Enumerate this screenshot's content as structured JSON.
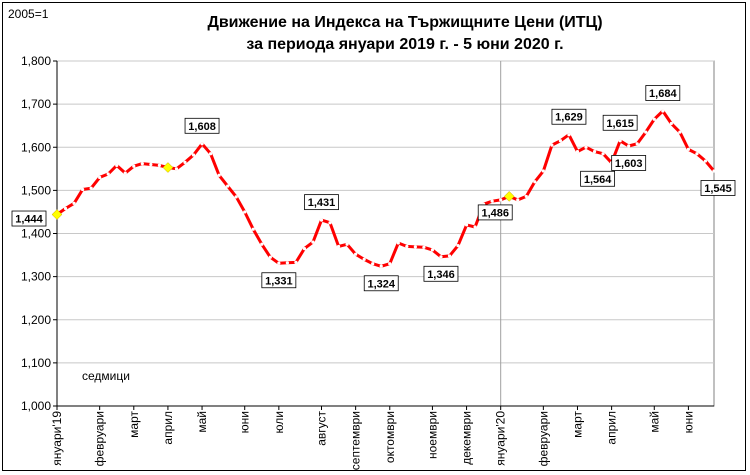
{
  "base_label": "2005=1",
  "title_line1": "Движение на Индекса на Тържищните Цени (ИТЦ)",
  "title_line2": "за периода януари 2019 г. - 5 юни 2020 г.",
  "chart_data": {
    "type": "line",
    "ylim": [
      1.0,
      1.8
    ],
    "yticks": [
      "1,000",
      "1,100",
      "1,200",
      "1,300",
      "1,400",
      "1,500",
      "1,600",
      "1,700",
      "1,800"
    ],
    "xlabel": "седмици",
    "x_month_labels": [
      {
        "week": 0,
        "label": "януари'19"
      },
      {
        "week": 5,
        "label": "февруари"
      },
      {
        "week": 9,
        "label": "март"
      },
      {
        "week": 13,
        "label": "април"
      },
      {
        "week": 17,
        "label": "май"
      },
      {
        "week": 22,
        "label": "юни"
      },
      {
        "week": 26,
        "label": "юли"
      },
      {
        "week": 31,
        "label": "август"
      },
      {
        "week": 35,
        "label": "септември"
      },
      {
        "week": 39,
        "label": "октомври"
      },
      {
        "week": 44,
        "label": "ноември"
      },
      {
        "week": 48,
        "label": "декември"
      },
      {
        "week": 52,
        "label": "януари'20"
      },
      {
        "week": 57,
        "label": "февруари"
      },
      {
        "week": 61,
        "label": "март"
      },
      {
        "week": 65,
        "label": "април"
      },
      {
        "week": 70,
        "label": "май"
      },
      {
        "week": 74,
        "label": "юни"
      }
    ],
    "series": [
      {
        "values": [
          1.444,
          1.458,
          1.47,
          1.502,
          1.505,
          1.53,
          1.538,
          1.558,
          1.54,
          1.556,
          1.562,
          1.56,
          1.558,
          1.553,
          1.55,
          1.565,
          1.582,
          1.608,
          1.585,
          1.535,
          1.51,
          1.485,
          1.45,
          1.41,
          1.375,
          1.345,
          1.331,
          1.332,
          1.333,
          1.365,
          1.38,
          1.431,
          1.425,
          1.37,
          1.375,
          1.352,
          1.34,
          1.33,
          1.324,
          1.33,
          1.378,
          1.37,
          1.369,
          1.368,
          1.362,
          1.346,
          1.348,
          1.372,
          1.42,
          1.415,
          1.468,
          1.475,
          1.478,
          1.486,
          1.478,
          1.486,
          1.52,
          1.545,
          1.605,
          1.615,
          1.629,
          1.59,
          1.6,
          1.59,
          1.585,
          1.564,
          1.615,
          1.603,
          1.608,
          1.635,
          1.665,
          1.684,
          1.655,
          1.635,
          1.595,
          1.585,
          1.568,
          1.545
        ],
        "color": "#ff0000"
      }
    ],
    "highlight_points": [
      {
        "index": 0,
        "color": "#ffff00"
      },
      {
        "index": 13,
        "color": "#ffff00"
      },
      {
        "index": 53,
        "color": "#ffff00"
      }
    ],
    "data_labels": [
      {
        "index": 0,
        "text": "1,444",
        "pos": "left"
      },
      {
        "index": 17,
        "text": "1,608",
        "pos": "above"
      },
      {
        "index": 26,
        "text": "1,331",
        "pos": "below"
      },
      {
        "index": 31,
        "text": "1,431",
        "pos": "above"
      },
      {
        "index": 38,
        "text": "1,324",
        "pos": "below"
      },
      {
        "index": 45,
        "text": "1,346",
        "pos": "below"
      },
      {
        "index": 53,
        "text": "1,486",
        "pos": "belowleft"
      },
      {
        "index": 60,
        "text": "1,629",
        "pos": "above"
      },
      {
        "index": 65,
        "text": "1,564",
        "pos": "belowleft"
      },
      {
        "index": 66,
        "text": "1,615",
        "pos": "above"
      },
      {
        "index": 67,
        "text": "1,603",
        "pos": "below"
      },
      {
        "index": 71,
        "text": "1,684",
        "pos": "above"
      },
      {
        "index": 77,
        "text": "1,545",
        "pos": "belowright"
      }
    ],
    "grid": true
  }
}
